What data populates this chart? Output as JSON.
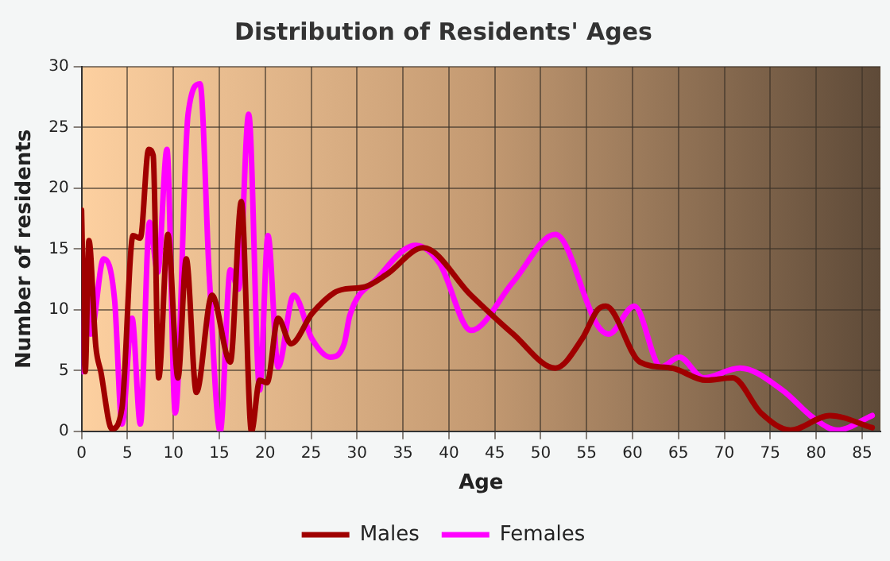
{
  "chart_data": {
    "type": "line",
    "title": "Distribution of Residents' Ages",
    "xlabel": "Age",
    "ylabel": "Number of residents",
    "xlim": [
      0,
      87
    ],
    "xticks": [
      0,
      5,
      10,
      15,
      20,
      25,
      30,
      35,
      40,
      45,
      50,
      55,
      60,
      65,
      70,
      75,
      80,
      85
    ],
    "ylim": [
      0,
      30
    ],
    "yticks": [
      0,
      5,
      10,
      15,
      20,
      25,
      30
    ],
    "grid": true,
    "legend": "bottom",
    "marker": "none",
    "line_style": "solid",
    "series": [
      {
        "name": "Males",
        "color": "#a00000",
        "x": [
          0,
          0.4,
          0.8,
          1.55,
          2.1,
          3.3,
          4.4,
          5.6,
          6.4,
          7.3,
          7.8,
          8.4,
          9.4,
          10.5,
          11.4,
          12.5,
          14.2,
          16.2,
          17.4,
          18.5,
          19.4,
          20.2,
          21.4,
          22.8,
          25.1,
          27.5,
          28.6,
          30.9,
          33.2,
          37.2,
          42.4,
          47,
          51.6,
          54.5,
          56.2,
          57.1,
          60.8,
          64.3,
          68,
          70.9,
          74,
          77.2,
          81.5,
          86.1
        ],
        "values": [
          18.2,
          4.9,
          15.7,
          7,
          4.9,
          0.2,
          1.9,
          16.1,
          15.9,
          23.2,
          22.7,
          4.4,
          16.2,
          4.4,
          14.2,
          3.2,
          11.2,
          5.7,
          18.9,
          0,
          4.2,
          4,
          9.3,
          7.2,
          9.7,
          11.4,
          11.7,
          11.9,
          12.9,
          15.1,
          11.2,
          8,
          5.2,
          7.6,
          10,
          10.3,
          5.7,
          5.2,
          4.2,
          4.4,
          1.5,
          0.1,
          1.3,
          0.3
        ]
      },
      {
        "name": "Females",
        "color": "#ff00ff",
        "x": [
          0.1,
          0.5,
          1,
          2.4,
          3.6,
          4.4,
          5.5,
          6.4,
          7.4,
          8.3,
          9.3,
          10.2,
          11.6,
          12.9,
          13.9,
          15.1,
          16.2,
          17.1,
          18.2,
          19.4,
          20.3,
          21.4,
          23.1,
          25.1,
          27.1,
          28.6,
          29.2,
          32.1,
          36.4,
          39,
          42.4,
          47,
          51.6,
          56.2,
          57.4,
          60.2,
          63.1,
          65.1,
          67.7,
          71.7,
          76.3,
          79.7,
          82.3,
          86.1
        ],
        "values": [
          4.9,
          12.9,
          8,
          14.2,
          10.8,
          0.6,
          9.3,
          0.6,
          17.2,
          13.1,
          23.2,
          1.5,
          26.1,
          28.6,
          12.9,
          0,
          13.3,
          11.7,
          26.1,
          3.4,
          16.1,
          5.3,
          11.2,
          7.6,
          6.1,
          7.2,
          9.5,
          12.5,
          15.3,
          13.8,
          8.3,
          12.3,
          16.2,
          8.7,
          8,
          10.3,
          5.3,
          6.1,
          4.4,
          5.2,
          3.4,
          1.1,
          0.1,
          1.3
        ]
      }
    ]
  }
}
